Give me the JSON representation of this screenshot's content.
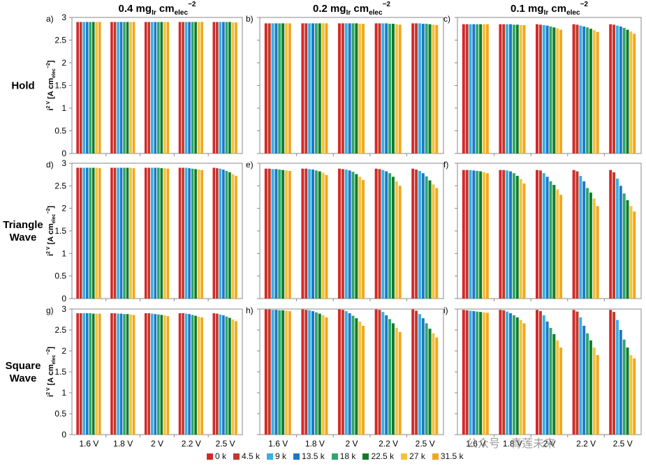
{
  "column_titles": [
    {
      "main": "0.4 mg",
      "sub1": "Ir",
      "mid": " cm",
      "sub2": "elec",
      "sup": "−2"
    },
    {
      "main": "0.2 mg",
      "sub1": "Ir",
      "mid": " cm",
      "sub2": "elec",
      "sup": "−2"
    },
    {
      "main": "0.1 mg",
      "sub1": "Ir",
      "mid": " cm",
      "sub2": "elec",
      "sup": "−2"
    }
  ],
  "row_titles": [
    [
      "Hold"
    ],
    [
      "Triangle",
      "Wave"
    ],
    [
      "Square",
      "Wave"
    ]
  ],
  "y_axis_label": {
    "main": "i",
    "sup": "2 V",
    "rest": " [A cm",
    "sub": "elec",
    "sup2": "−2",
    "close": "]"
  },
  "colors": {
    "0 k": "#d62728",
    "4.5 k": "#c0392b",
    "9 k": "#35b0e8",
    "13.5 k": "#1f77c8",
    "18 k": "#2ca86a",
    "22.5 k": "#137a2c",
    "27 k": "#f5c23a",
    "31.5 k": "#f2a71c"
  },
  "legend": {
    "items": [
      {
        "label": "0 k",
        "color": "#d62728"
      },
      {
        "label": "4.5 k",
        "color": "#c0392b"
      },
      {
        "label": "9 k",
        "color": "#35b0e8"
      },
      {
        "label": "13.5 k",
        "color": "#1f77c8"
      },
      {
        "label": "18 k",
        "color": "#2ca86a"
      },
      {
        "label": "22.5 k",
        "color": "#137a2c"
      },
      {
        "label": "27 k",
        "color": "#f5c23a"
      },
      {
        "label": "31.5 k",
        "color": "#f2a71c"
      }
    ]
  },
  "watermark": "公众号 · 青莲未来",
  "chart_data": [
    {
      "panel": "a)",
      "type": "bar",
      "categories": [
        "1.6 V",
        "1.8 V",
        "2 V",
        "2.2 V",
        "2.5 V"
      ],
      "ylim": [
        0,
        3
      ],
      "yticks": [
        0,
        0.5,
        1,
        1.5,
        2,
        2.5,
        3
      ],
      "grid": false,
      "series": [
        {
          "name": "0 k",
          "values": [
            2.9,
            2.9,
            2.9,
            2.9,
            2.9
          ]
        },
        {
          "name": "4.5 k",
          "values": [
            2.9,
            2.9,
            2.9,
            2.9,
            2.9
          ]
        },
        {
          "name": "9 k",
          "values": [
            2.9,
            2.9,
            2.9,
            2.9,
            2.9
          ]
        },
        {
          "name": "13.5 k",
          "values": [
            2.9,
            2.9,
            2.9,
            2.9,
            2.9
          ]
        },
        {
          "name": "18 k",
          "values": [
            2.9,
            2.9,
            2.9,
            2.9,
            2.9
          ]
        },
        {
          "name": "22.5 k",
          "values": [
            2.9,
            2.9,
            2.9,
            2.9,
            2.9
          ]
        },
        {
          "name": "27 k",
          "values": [
            2.9,
            2.9,
            2.9,
            2.9,
            2.89
          ]
        },
        {
          "name": "31.5 k",
          "values": [
            2.9,
            2.9,
            2.9,
            2.9,
            2.89
          ]
        }
      ]
    },
    {
      "panel": "b)",
      "type": "bar",
      "categories": [
        "1.6 V",
        "1.8 V",
        "2 V",
        "2.2 V",
        "2.5 V"
      ],
      "ylim": [
        0,
        3
      ],
      "yticks": [
        0,
        0.5,
        1,
        1.5,
        2,
        2.5,
        3
      ],
      "grid": false,
      "series": [
        {
          "name": "0 k",
          "values": [
            2.87,
            2.87,
            2.87,
            2.87,
            2.87
          ]
        },
        {
          "name": "4.5 k",
          "values": [
            2.87,
            2.87,
            2.87,
            2.87,
            2.87
          ]
        },
        {
          "name": "9 k",
          "values": [
            2.87,
            2.87,
            2.87,
            2.87,
            2.87
          ]
        },
        {
          "name": "13.5 k",
          "values": [
            2.87,
            2.87,
            2.87,
            2.87,
            2.86
          ]
        },
        {
          "name": "18 k",
          "values": [
            2.87,
            2.87,
            2.87,
            2.86,
            2.86
          ]
        },
        {
          "name": "22.5 k",
          "values": [
            2.87,
            2.87,
            2.87,
            2.86,
            2.85
          ]
        },
        {
          "name": "27 k",
          "values": [
            2.87,
            2.87,
            2.86,
            2.85,
            2.84
          ]
        },
        {
          "name": "31.5 k",
          "values": [
            2.87,
            2.87,
            2.86,
            2.84,
            2.83
          ]
        }
      ]
    },
    {
      "panel": "c)",
      "type": "bar",
      "categories": [
        "1.6 V",
        "1.8 V",
        "2 V",
        "2.2 V",
        "2.5 V"
      ],
      "ylim": [
        0,
        3
      ],
      "yticks": [
        0,
        0.5,
        1,
        1.5,
        2,
        2.5,
        3
      ],
      "grid": false,
      "series": [
        {
          "name": "0 k",
          "values": [
            2.85,
            2.85,
            2.85,
            2.85,
            2.85
          ]
        },
        {
          "name": "4.5 k",
          "values": [
            2.85,
            2.85,
            2.84,
            2.84,
            2.84
          ]
        },
        {
          "name": "9 k",
          "values": [
            2.85,
            2.85,
            2.83,
            2.82,
            2.82
          ]
        },
        {
          "name": "13.5 k",
          "values": [
            2.85,
            2.85,
            2.82,
            2.8,
            2.8
          ]
        },
        {
          "name": "18 k",
          "values": [
            2.85,
            2.84,
            2.8,
            2.78,
            2.77
          ]
        },
        {
          "name": "22.5 k",
          "values": [
            2.85,
            2.84,
            2.78,
            2.75,
            2.73
          ]
        },
        {
          "name": "27 k",
          "values": [
            2.85,
            2.83,
            2.76,
            2.72,
            2.69
          ]
        },
        {
          "name": "31.5 k",
          "values": [
            2.85,
            2.83,
            2.73,
            2.68,
            2.64
          ]
        }
      ]
    },
    {
      "panel": "d)",
      "type": "bar",
      "categories": [
        "1.6 V",
        "1.8 V",
        "2 V",
        "2.2 V",
        "2.5 V"
      ],
      "ylim": [
        0,
        3
      ],
      "yticks": [
        0,
        0.5,
        1,
        1.5,
        2,
        2.5,
        3
      ],
      "grid": false,
      "series": [
        {
          "name": "0 k",
          "values": [
            2.9,
            2.9,
            2.9,
            2.9,
            2.9
          ]
        },
        {
          "name": "4.5 k",
          "values": [
            2.9,
            2.9,
            2.9,
            2.9,
            2.89
          ]
        },
        {
          "name": "9 k",
          "values": [
            2.9,
            2.9,
            2.9,
            2.9,
            2.88
          ]
        },
        {
          "name": "13.5 k",
          "values": [
            2.9,
            2.9,
            2.9,
            2.89,
            2.86
          ]
        },
        {
          "name": "18 k",
          "values": [
            2.9,
            2.9,
            2.9,
            2.88,
            2.83
          ]
        },
        {
          "name": "22.5 k",
          "values": [
            2.9,
            2.9,
            2.89,
            2.87,
            2.8
          ]
        },
        {
          "name": "27 k",
          "values": [
            2.9,
            2.9,
            2.89,
            2.86,
            2.76
          ]
        },
        {
          "name": "31.5 k",
          "values": [
            2.89,
            2.89,
            2.88,
            2.85,
            2.72
          ]
        }
      ]
    },
    {
      "panel": "e)",
      "type": "bar",
      "categories": [
        "1.6 V",
        "1.8 V",
        "2 V",
        "2.2 V",
        "2.5 V"
      ],
      "ylim": [
        0,
        3
      ],
      "yticks": [
        0,
        0.5,
        1,
        1.5,
        2,
        2.5,
        3
      ],
      "grid": false,
      "series": [
        {
          "name": "0 k",
          "values": [
            2.88,
            2.88,
            2.88,
            2.88,
            2.88
          ]
        },
        {
          "name": "4.5 k",
          "values": [
            2.88,
            2.88,
            2.87,
            2.87,
            2.86
          ]
        },
        {
          "name": "9 k",
          "values": [
            2.87,
            2.87,
            2.86,
            2.85,
            2.83
          ]
        },
        {
          "name": "13.5 k",
          "values": [
            2.87,
            2.86,
            2.84,
            2.82,
            2.78
          ]
        },
        {
          "name": "18 k",
          "values": [
            2.86,
            2.84,
            2.81,
            2.78,
            2.71
          ]
        },
        {
          "name": "22.5 k",
          "values": [
            2.85,
            2.82,
            2.76,
            2.7,
            2.62
          ]
        },
        {
          "name": "27 k",
          "values": [
            2.84,
            2.79,
            2.7,
            2.6,
            2.53
          ]
        },
        {
          "name": "31.5 k",
          "values": [
            2.83,
            2.74,
            2.63,
            2.5,
            2.45
          ]
        }
      ]
    },
    {
      "panel": "f)",
      "type": "bar",
      "categories": [
        "1.6 V",
        "1.8 V",
        "2 V",
        "2.2 V",
        "2.5 V"
      ],
      "ylim": [
        0,
        3
      ],
      "yticks": [
        0,
        0.5,
        1,
        1.5,
        2,
        2.5,
        3
      ],
      "grid": false,
      "series": [
        {
          "name": "0 k",
          "values": [
            2.85,
            2.85,
            2.85,
            2.85,
            2.85
          ]
        },
        {
          "name": "4.5 k",
          "values": [
            2.85,
            2.85,
            2.84,
            2.82,
            2.8
          ]
        },
        {
          "name": "9 k",
          "values": [
            2.85,
            2.84,
            2.78,
            2.72,
            2.66
          ]
        },
        {
          "name": "13.5 k",
          "values": [
            2.84,
            2.82,
            2.7,
            2.6,
            2.5
          ]
        },
        {
          "name": "18 k",
          "values": [
            2.83,
            2.78,
            2.6,
            2.45,
            2.33
          ]
        },
        {
          "name": "22.5 k",
          "values": [
            2.82,
            2.72,
            2.52,
            2.35,
            2.18
          ]
        },
        {
          "name": "27 k",
          "values": [
            2.8,
            2.65,
            2.42,
            2.22,
            2.05
          ]
        },
        {
          "name": "31.5 k",
          "values": [
            2.78,
            2.55,
            2.3,
            2.05,
            1.93
          ]
        }
      ]
    },
    {
      "panel": "g)",
      "type": "bar",
      "categories": [
        "1.6 V",
        "1.8 V",
        "2 V",
        "2.2 V",
        "2.5 V"
      ],
      "ylim": [
        0,
        3
      ],
      "yticks": [
        0,
        0.5,
        1,
        1.5,
        2,
        2.5,
        3
      ],
      "grid": false,
      "series": [
        {
          "name": "0 k",
          "values": [
            2.9,
            2.9,
            2.9,
            2.9,
            2.9
          ]
        },
        {
          "name": "4.5 k",
          "values": [
            2.9,
            2.9,
            2.9,
            2.9,
            2.89
          ]
        },
        {
          "name": "9 k",
          "values": [
            2.9,
            2.89,
            2.89,
            2.89,
            2.87
          ]
        },
        {
          "name": "13.5 k",
          "values": [
            2.9,
            2.89,
            2.88,
            2.88,
            2.85
          ]
        },
        {
          "name": "18 k",
          "values": [
            2.9,
            2.88,
            2.87,
            2.86,
            2.82
          ]
        },
        {
          "name": "22.5 k",
          "values": [
            2.89,
            2.88,
            2.86,
            2.84,
            2.79
          ]
        },
        {
          "name": "27 k",
          "values": [
            2.89,
            2.87,
            2.85,
            2.82,
            2.75
          ]
        },
        {
          "name": "31.5 k",
          "values": [
            2.89,
            2.86,
            2.83,
            2.8,
            2.71
          ]
        }
      ]
    },
    {
      "panel": "h)",
      "type": "bar",
      "categories": [
        "1.6 V",
        "1.8 V",
        "2 V",
        "2.2 V",
        "2.5 V"
      ],
      "ylim": [
        0,
        3
      ],
      "yticks": [
        0,
        0.5,
        1,
        1.5,
        2,
        2.5,
        3
      ],
      "grid": false,
      "series": [
        {
          "name": "0 k",
          "values": [
            2.99,
            2.99,
            2.99,
            2.99,
            2.99
          ]
        },
        {
          "name": "4.5 k",
          "values": [
            2.99,
            2.98,
            2.98,
            2.98,
            2.96
          ]
        },
        {
          "name": "9 k",
          "values": [
            2.98,
            2.97,
            2.95,
            2.93,
            2.88
          ]
        },
        {
          "name": "13.5 k",
          "values": [
            2.98,
            2.95,
            2.9,
            2.85,
            2.78
          ]
        },
        {
          "name": "18 k",
          "values": [
            2.97,
            2.92,
            2.84,
            2.76,
            2.66
          ]
        },
        {
          "name": "22.5 k",
          "values": [
            2.97,
            2.89,
            2.78,
            2.66,
            2.53
          ]
        },
        {
          "name": "27 k",
          "values": [
            2.96,
            2.85,
            2.7,
            2.55,
            2.42
          ]
        },
        {
          "name": "31.5 k",
          "values": [
            2.95,
            2.8,
            2.6,
            2.45,
            2.32
          ]
        }
      ]
    },
    {
      "panel": "i)",
      "type": "bar",
      "categories": [
        "1.6 V",
        "1.8 V",
        "2 V",
        "2.2 V",
        "2.5 V"
      ],
      "ylim": [
        0,
        3
      ],
      "yticks": [
        0,
        0.5,
        1,
        1.5,
        2,
        2.5,
        3
      ],
      "grid": false,
      "series": [
        {
          "name": "0 k",
          "values": [
            2.98,
            2.98,
            2.98,
            2.98,
            2.98
          ]
        },
        {
          "name": "4.5 k",
          "values": [
            2.97,
            2.97,
            2.95,
            2.94,
            2.93
          ]
        },
        {
          "name": "9 k",
          "values": [
            2.96,
            2.94,
            2.85,
            2.8,
            2.74
          ]
        },
        {
          "name": "13.5 k",
          "values": [
            2.95,
            2.9,
            2.7,
            2.6,
            2.5
          ]
        },
        {
          "name": "18 k",
          "values": [
            2.94,
            2.85,
            2.55,
            2.42,
            2.27
          ]
        },
        {
          "name": "22.5 k",
          "values": [
            2.93,
            2.8,
            2.4,
            2.25,
            2.08
          ]
        },
        {
          "name": "27 k",
          "values": [
            2.92,
            2.74,
            2.25,
            2.08,
            1.9
          ]
        },
        {
          "name": "31.5 k",
          "values": [
            2.91,
            2.66,
            2.08,
            1.9,
            1.82
          ]
        }
      ]
    }
  ]
}
